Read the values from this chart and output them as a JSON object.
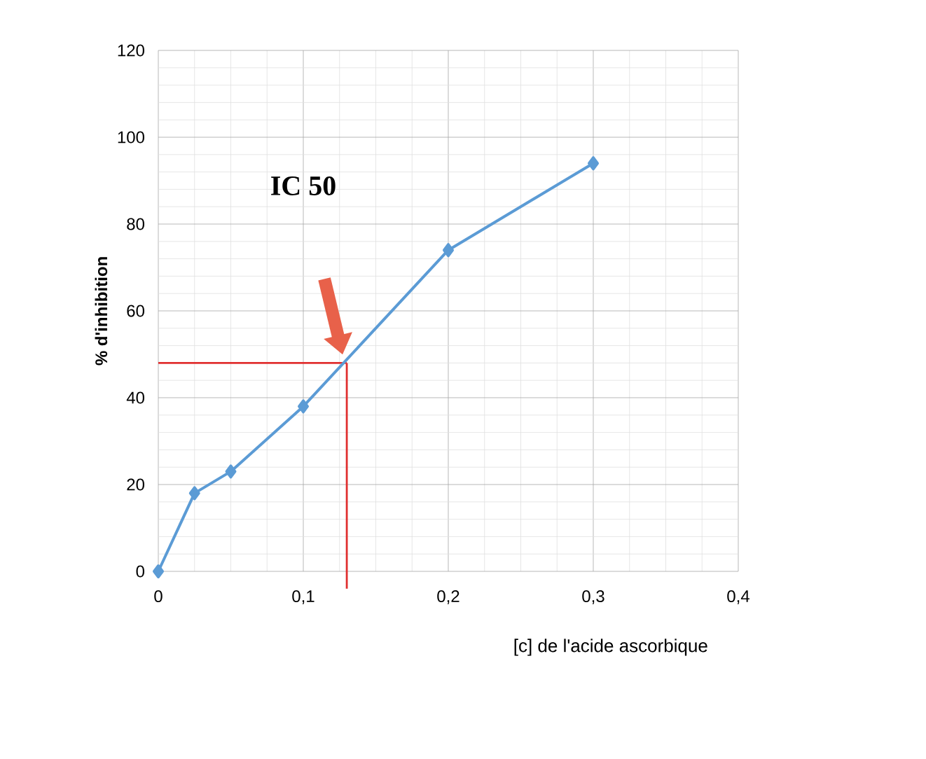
{
  "chart_data": {
    "type": "line",
    "xlabel": "[c] de l'acide ascorbique",
    "ylabel": "% d'inhibition",
    "x": [
      0,
      0.025,
      0.05,
      0.1,
      0.2,
      0.3
    ],
    "series": [
      {
        "color": "#5b9bd5",
        "values": [
          0,
          18,
          23,
          38,
          74,
          94
        ]
      }
    ],
    "xlim": [
      0,
      0.4
    ],
    "xticks": [
      0,
      {
        "value": 0.1,
        "label": "0,1"
      },
      {
        "value": 0.2,
        "label": "0,2"
      },
      {
        "value": 0.3,
        "label": "0,3"
      },
      {
        "value": 0.4,
        "label": "0,4"
      }
    ],
    "ylim": [
      0,
      120
    ],
    "yticks": [
      0,
      20,
      40,
      60,
      80,
      100,
      120
    ],
    "grid": true,
    "marker": "diamond",
    "line_style": "solid",
    "ref_lines": [
      {
        "axis": "y",
        "value": 48,
        "color": "#e03030"
      },
      {
        "axis": "x",
        "value": 0.13,
        "color": "#e03030"
      }
    ],
    "annotations": [
      "IC 50"
    ]
  }
}
